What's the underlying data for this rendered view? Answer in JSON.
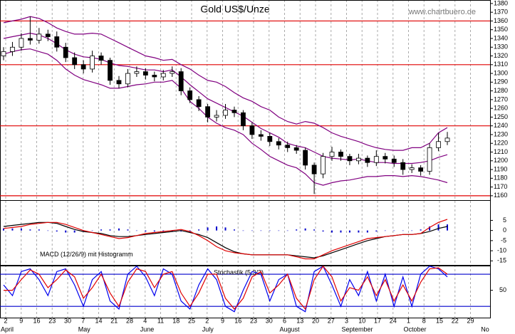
{
  "chart_data": [
    {
      "type": "candlestick",
      "title": "Gold US$/Unze",
      "source": "www.chartbuero.de",
      "ylim": [
        1155,
        1384
      ],
      "yticks": [
        1160,
        1170,
        1180,
        1190,
        1200,
        1210,
        1220,
        1230,
        1240,
        1250,
        1260,
        1270,
        1280,
        1290,
        1300,
        1310,
        1320,
        1330,
        1340,
        1350,
        1360,
        1370,
        1380
      ],
      "levels": [
        1360,
        1310,
        1240,
        1160
      ],
      "level_color": "#e00000",
      "xticks": [
        "2",
        "9",
        "16",
        "23",
        "30",
        "7",
        "14",
        "21",
        "28",
        "4",
        "11",
        "18",
        "25",
        "2",
        "9",
        "16",
        "23",
        "30",
        "6",
        "13",
        "20",
        "27",
        "3",
        "10",
        "17",
        "24",
        "1",
        "8",
        "15",
        "22",
        "29"
      ],
      "months": [
        "April",
        "May",
        "June",
        "July",
        "August",
        "September",
        "October",
        "No"
      ],
      "open": [
        1320,
        1325,
        1330,
        1340,
        1338,
        1345,
        1342,
        1330,
        1318,
        1310,
        1305,
        1320,
        1315,
        1292,
        1288,
        1300,
        1302,
        1298,
        1296,
        1300,
        1302,
        1280,
        1270,
        1262,
        1250,
        1252,
        1258,
        1255,
        1240,
        1230,
        1228,
        1222,
        1218,
        1215,
        1212,
        1195,
        1185,
        1205,
        1210,
        1205,
        1200,
        1203,
        1198,
        1205,
        1202,
        1198,
        1190,
        1192,
        1188,
        1215,
        1222
      ],
      "high": [
        1330,
        1336,
        1346,
        1365,
        1352,
        1350,
        1348,
        1335,
        1324,
        1315,
        1326,
        1324,
        1318,
        1297,
        1305,
        1308,
        1306,
        1302,
        1304,
        1308,
        1306,
        1284,
        1274,
        1265,
        1258,
        1265,
        1262,
        1258,
        1244,
        1235,
        1232,
        1226,
        1222,
        1218,
        1215,
        1198,
        1209,
        1216,
        1213,
        1208,
        1208,
        1206,
        1212,
        1209,
        1206,
        1202,
        1196,
        1195,
        1220,
        1232,
        1233
      ],
      "low": [
        1315,
        1320,
        1326,
        1333,
        1334,
        1337,
        1325,
        1313,
        1305,
        1300,
        1301,
        1310,
        1287,
        1283,
        1284,
        1296,
        1293,
        1291,
        1292,
        1296,
        1275,
        1266,
        1257,
        1244,
        1245,
        1248,
        1250,
        1235,
        1225,
        1223,
        1217,
        1213,
        1210,
        1208,
        1190,
        1162,
        1180,
        1200,
        1200,
        1195,
        1196,
        1193,
        1194,
        1197,
        1193,
        1184,
        1186,
        1183,
        1184,
        1211,
        1218
      ],
      "close": [
        1325,
        1330,
        1340,
        1338,
        1345,
        1342,
        1330,
        1318,
        1310,
        1305,
        1320,
        1315,
        1292,
        1288,
        1300,
        1302,
        1298,
        1296,
        1300,
        1302,
        1280,
        1270,
        1262,
        1250,
        1252,
        1258,
        1255,
        1240,
        1230,
        1228,
        1222,
        1218,
        1215,
        1212,
        1195,
        1185,
        1205,
        1210,
        1205,
        1200,
        1203,
        1198,
        1205,
        1202,
        1198,
        1190,
        1192,
        1188,
        1215,
        1222,
        1226
      ],
      "series": [
        {
          "color": "#800080",
          "values": [
            1358,
            1360,
            1362,
            1365,
            1363,
            1358,
            1352,
            1348,
            1345,
            1345,
            1346,
            1345,
            1340,
            1335,
            1330,
            1325,
            1320,
            1318,
            1315,
            1316,
            1310,
            1305,
            1298,
            1292,
            1290,
            1285,
            1278,
            1272,
            1268,
            1262,
            1258,
            1250,
            1245,
            1242,
            1245,
            1243,
            1238,
            1232,
            1228,
            1225,
            1222,
            1218,
            1215,
            1213,
            1212,
            1212,
            1215,
            1215,
            1220,
            1232,
            1238
          ]
        },
        {
          "color": "#800080",
          "values": [
            1340,
            1342,
            1344,
            1346,
            1344,
            1340,
            1334,
            1327,
            1322,
            1319,
            1318,
            1316,
            1312,
            1309,
            1308,
            1306,
            1304,
            1304,
            1302,
            1304,
            1296,
            1287,
            1279,
            1271,
            1266,
            1261,
            1256,
            1251,
            1244,
            1237,
            1232,
            1227,
            1220,
            1217,
            1215,
            1210,
            1205,
            1203,
            1202,
            1201,
            1202,
            1200,
            1198,
            1198,
            1197,
            1197,
            1197,
            1198,
            1200,
            1204,
            1207
          ]
        },
        {
          "color": "#800080",
          "values": [
            1322,
            1325,
            1327,
            1328,
            1325,
            1322,
            1315,
            1305,
            1298,
            1293,
            1290,
            1287,
            1283,
            1283,
            1285,
            1287,
            1288,
            1290,
            1290,
            1292,
            1283,
            1268,
            1260,
            1250,
            1243,
            1238,
            1235,
            1230,
            1220,
            1213,
            1205,
            1200,
            1195,
            1192,
            1185,
            1175,
            1172,
            1175,
            1177,
            1178,
            1180,
            1182,
            1182,
            1183,
            1183,
            1182,
            1183,
            1182,
            1180,
            1178,
            1175
          ]
        }
      ]
    },
    {
      "type": "line",
      "title": "MACD (12/26/9) mit Histogramm",
      "ylim": [
        -17,
        15
      ],
      "yticks": [
        5,
        0,
        -5,
        -10,
        -15
      ],
      "histogram": {
        "color": "#0000cc",
        "values": [
          1,
          1,
          1,
          0.5,
          0.5,
          0,
          -0.5,
          -1,
          -1,
          -0.5,
          0,
          0.5,
          0.5,
          1,
          0.5,
          0,
          -0.5,
          -0.5,
          -0.5,
          -0.5,
          -0.5,
          -0.5,
          0.5,
          1.5,
          2,
          1.5,
          0.5,
          0,
          0,
          0,
          0,
          0,
          0,
          0.5,
          1,
          0.5,
          -0.5,
          -1,
          -1,
          -1,
          -1,
          -1,
          -0.5,
          0,
          0,
          0,
          0,
          0.5,
          2,
          3,
          3
        ]
      },
      "series": [
        {
          "color": "#000000",
          "values": [
            2,
            2.5,
            3,
            3.5,
            4,
            4,
            3.5,
            2,
            0.5,
            -0.5,
            -1,
            -1.5,
            -2.5,
            -3,
            -3,
            -2.5,
            -2,
            -1.5,
            -1,
            -0.5,
            0,
            -1,
            -2,
            -3.5,
            -6,
            -8.5,
            -10.5,
            -11.5,
            -12,
            -12,
            -12,
            -12,
            -12,
            -12.5,
            -13,
            -13.5,
            -12.5,
            -11,
            -9.5,
            -8,
            -6.5,
            -5,
            -4,
            -3,
            -2.5,
            -2,
            -2,
            -1.5,
            -0.5,
            1,
            2
          ]
        },
        {
          "color": "#e00000",
          "values": [
            1,
            1.5,
            2,
            3,
            3.5,
            4,
            4,
            3,
            1.5,
            0,
            -1,
            -2,
            -3,
            -4,
            -3.5,
            -2.5,
            -1.5,
            -1,
            -0.5,
            0,
            0.5,
            -0.5,
            -2.5,
            -5,
            -8,
            -10,
            -11,
            -11.5,
            -12,
            -12,
            -12,
            -12,
            -12,
            -13,
            -14,
            -14,
            -12,
            -10,
            -8.5,
            -7,
            -5.5,
            -4,
            -3.5,
            -3,
            -2.5,
            -2,
            -2,
            -1.5,
            1.5,
            4,
            5.5
          ]
        }
      ]
    },
    {
      "type": "line",
      "title": "Stochastik (5,3/3)",
      "ylim": [
        -1,
        96
      ],
      "yticks": [
        50
      ],
      "levels": [
        80,
        20
      ],
      "level_color": "#0000cc",
      "series": [
        {
          "color": "#0000ee",
          "values": [
            60,
            40,
            85,
            90,
            70,
            40,
            85,
            90,
            60,
            20,
            70,
            85,
            30,
            15,
            80,
            95,
            75,
            40,
            90,
            80,
            30,
            15,
            60,
            90,
            70,
            20,
            10,
            50,
            85,
            80,
            30,
            70,
            80,
            20,
            10,
            85,
            95,
            60,
            20,
            70,
            40,
            85,
            30,
            80,
            20,
            75,
            20,
            80,
            95,
            90,
            75
          ]
        },
        {
          "color": "#e00000",
          "values": [
            50,
            50,
            70,
            88,
            80,
            55,
            70,
            88,
            75,
            35,
            55,
            80,
            45,
            20,
            65,
            90,
            85,
            55,
            80,
            85,
            45,
            20,
            45,
            80,
            80,
            35,
            15,
            35,
            75,
            85,
            45,
            60,
            80,
            35,
            15,
            70,
            95,
            75,
            30,
            55,
            50,
            75,
            40,
            70,
            30,
            60,
            30,
            65,
            90,
            92,
            80
          ]
        }
      ]
    }
  ]
}
